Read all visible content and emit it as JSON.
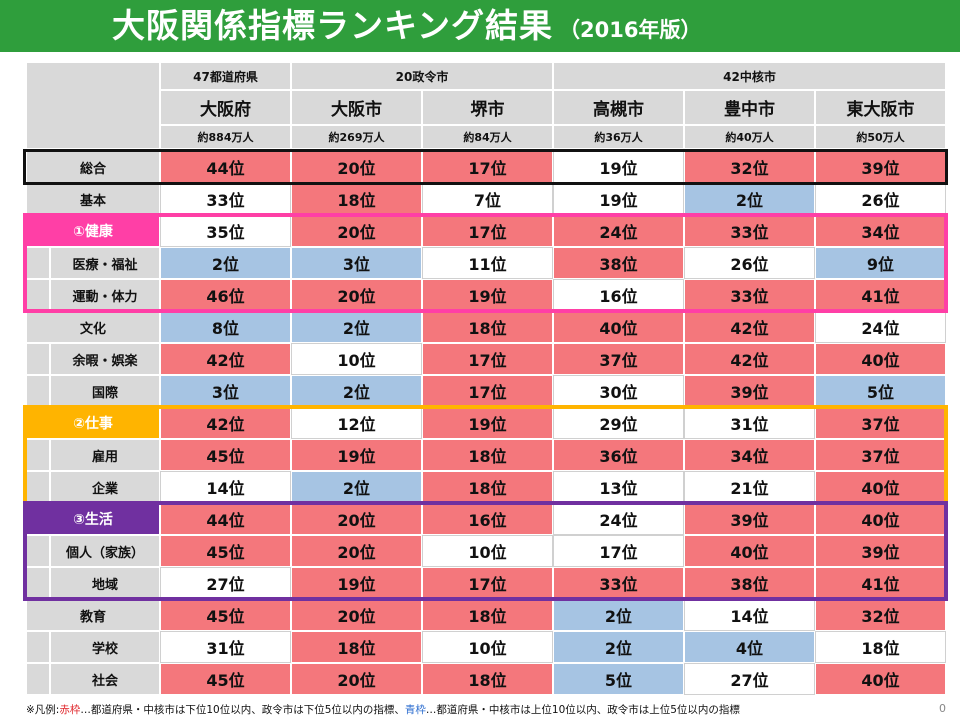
{
  "title": {
    "main": "大阪関係指標ランキング結果",
    "sub": "（2016年版）"
  },
  "groups": [
    {
      "label": "47都道府県"
    },
    {
      "label": "20政令市"
    },
    {
      "label": "42中核市"
    }
  ],
  "columns": [
    {
      "name": "大阪府",
      "population": "約884万人"
    },
    {
      "name": "大阪市",
      "population": "約269万人"
    },
    {
      "name": "堺市",
      "population": "約84万人"
    },
    {
      "name": "高槻市",
      "population": "約36万人"
    },
    {
      "name": "豊中市",
      "population": "約40万人"
    },
    {
      "name": "東大阪市",
      "population": "約50万人"
    }
  ],
  "rows": [
    {
      "label": "総合",
      "level": 0,
      "cells": [
        {
          "text": "44位",
          "color": "red"
        },
        {
          "text": "20位",
          "color": "red"
        },
        {
          "text": "17位",
          "color": "red"
        },
        {
          "text": "19位",
          "color": "white"
        },
        {
          "text": "32位",
          "color": "red"
        },
        {
          "text": "39位",
          "color": "red"
        }
      ]
    },
    {
      "label": "基本",
      "level": 0,
      "cells": [
        {
          "text": "33位",
          "color": "white"
        },
        {
          "text": "18位",
          "color": "red"
        },
        {
          "text": "7位",
          "color": "white"
        },
        {
          "text": "19位",
          "color": "white"
        },
        {
          "text": "2位",
          "color": "blue"
        },
        {
          "text": "26位",
          "color": "white"
        }
      ]
    },
    {
      "label": "①健康",
      "level": 0,
      "group": "health",
      "cells": [
        {
          "text": "35位",
          "color": "white"
        },
        {
          "text": "20位",
          "color": "red"
        },
        {
          "text": "17位",
          "color": "red"
        },
        {
          "text": "24位",
          "color": "red"
        },
        {
          "text": "33位",
          "color": "red"
        },
        {
          "text": "34位",
          "color": "red"
        }
      ]
    },
    {
      "label": "医療・福祉",
      "level": 1,
      "cells": [
        {
          "text": "2位",
          "color": "blue"
        },
        {
          "text": "3位",
          "color": "blue"
        },
        {
          "text": "11位",
          "color": "white"
        },
        {
          "text": "38位",
          "color": "red"
        },
        {
          "text": "26位",
          "color": "white"
        },
        {
          "text": "9位",
          "color": "blue"
        }
      ]
    },
    {
      "label": "運動・体力",
      "level": 1,
      "cells": [
        {
          "text": "46位",
          "color": "red"
        },
        {
          "text": "20位",
          "color": "red"
        },
        {
          "text": "19位",
          "color": "red"
        },
        {
          "text": "16位",
          "color": "white"
        },
        {
          "text": "33位",
          "color": "red"
        },
        {
          "text": "41位",
          "color": "red"
        }
      ]
    },
    {
      "label": "文化",
      "level": 0,
      "cells": [
        {
          "text": "8位",
          "color": "blue"
        },
        {
          "text": "2位",
          "color": "blue"
        },
        {
          "text": "18位",
          "color": "red"
        },
        {
          "text": "40位",
          "color": "red"
        },
        {
          "text": "42位",
          "color": "red"
        },
        {
          "text": "24位",
          "color": "white"
        }
      ]
    },
    {
      "label": "余暇・娯楽",
      "level": 1,
      "cells": [
        {
          "text": "42位",
          "color": "red"
        },
        {
          "text": "10位",
          "color": "white"
        },
        {
          "text": "17位",
          "color": "red"
        },
        {
          "text": "37位",
          "color": "red"
        },
        {
          "text": "42位",
          "color": "red"
        },
        {
          "text": "40位",
          "color": "red"
        }
      ]
    },
    {
      "label": "国際",
      "level": 1,
      "cells": [
        {
          "text": "3位",
          "color": "blue"
        },
        {
          "text": "2位",
          "color": "blue"
        },
        {
          "text": "17位",
          "color": "red"
        },
        {
          "text": "30位",
          "color": "white"
        },
        {
          "text": "39位",
          "color": "red"
        },
        {
          "text": "5位",
          "color": "blue"
        }
      ]
    },
    {
      "label": "②仕事",
      "level": 0,
      "group": "work",
      "cells": [
        {
          "text": "42位",
          "color": "red"
        },
        {
          "text": "12位",
          "color": "white"
        },
        {
          "text": "19位",
          "color": "red"
        },
        {
          "text": "29位",
          "color": "white"
        },
        {
          "text": "31位",
          "color": "white"
        },
        {
          "text": "37位",
          "color": "red"
        }
      ]
    },
    {
      "label": "雇用",
      "level": 1,
      "cells": [
        {
          "text": "45位",
          "color": "red"
        },
        {
          "text": "19位",
          "color": "red"
        },
        {
          "text": "18位",
          "color": "red"
        },
        {
          "text": "36位",
          "color": "red"
        },
        {
          "text": "34位",
          "color": "red"
        },
        {
          "text": "37位",
          "color": "red"
        }
      ]
    },
    {
      "label": "企業",
      "level": 1,
      "cells": [
        {
          "text": "14位",
          "color": "white"
        },
        {
          "text": "2位",
          "color": "blue"
        },
        {
          "text": "18位",
          "color": "red"
        },
        {
          "text": "13位",
          "color": "white"
        },
        {
          "text": "21位",
          "color": "white"
        },
        {
          "text": "40位",
          "color": "red"
        }
      ]
    },
    {
      "label": "③生活",
      "level": 0,
      "group": "life",
      "cells": [
        {
          "text": "44位",
          "color": "red"
        },
        {
          "text": "20位",
          "color": "red"
        },
        {
          "text": "16位",
          "color": "red"
        },
        {
          "text": "24位",
          "color": "white"
        },
        {
          "text": "39位",
          "color": "red"
        },
        {
          "text": "40位",
          "color": "red"
        }
      ]
    },
    {
      "label": "個人（家族）",
      "level": 1,
      "cells": [
        {
          "text": "45位",
          "color": "red"
        },
        {
          "text": "20位",
          "color": "red"
        },
        {
          "text": "10位",
          "color": "white"
        },
        {
          "text": "17位",
          "color": "white"
        },
        {
          "text": "40位",
          "color": "red"
        },
        {
          "text": "39位",
          "color": "red"
        }
      ]
    },
    {
      "label": "地域",
      "level": 1,
      "cells": [
        {
          "text": "27位",
          "color": "white"
        },
        {
          "text": "19位",
          "color": "red"
        },
        {
          "text": "17位",
          "color": "red"
        },
        {
          "text": "33位",
          "color": "red"
        },
        {
          "text": "38位",
          "color": "red"
        },
        {
          "text": "41位",
          "color": "red"
        }
      ]
    },
    {
      "label": "教育",
      "level": 0,
      "cells": [
        {
          "text": "45位",
          "color": "red"
        },
        {
          "text": "20位",
          "color": "red"
        },
        {
          "text": "18位",
          "color": "red"
        },
        {
          "text": "2位",
          "color": "blue"
        },
        {
          "text": "14位",
          "color": "white"
        },
        {
          "text": "32位",
          "color": "red"
        }
      ]
    },
    {
      "label": "学校",
      "level": 1,
      "cells": [
        {
          "text": "31位",
          "color": "white"
        },
        {
          "text": "18位",
          "color": "red"
        },
        {
          "text": "10位",
          "color": "white"
        },
        {
          "text": "2位",
          "color": "blue"
        },
        {
          "text": "4位",
          "color": "blue"
        },
        {
          "text": "18位",
          "color": "white"
        }
      ]
    },
    {
      "label": "社会",
      "level": 1,
      "cells": [
        {
          "text": "45位",
          "color": "red"
        },
        {
          "text": "20位",
          "color": "red"
        },
        {
          "text": "18位",
          "color": "red"
        },
        {
          "text": "5位",
          "color": "blue"
        },
        {
          "text": "27位",
          "color": "white"
        },
        {
          "text": "40位",
          "color": "red"
        }
      ]
    }
  ],
  "legend": {
    "prefix": "※凡例:",
    "red_label": "赤枠",
    "red_desc": "…都道府県・中核市は下位10位以内、政令市は下位5位以内の指標、",
    "blue_label": "青枠",
    "blue_desc": "…都道府県・中核市は上位10位以内、政令市は上位5位以内の指標"
  },
  "page_number": "0",
  "colors": {
    "red": "#f4777c",
    "blue": "#a6c4e3",
    "header_gray": "#d9d9d9",
    "title_green": "#2f9e3c",
    "health_pink": "#ff3fa6",
    "work_orange": "#ffb400",
    "life_purple": "#7030a0"
  }
}
